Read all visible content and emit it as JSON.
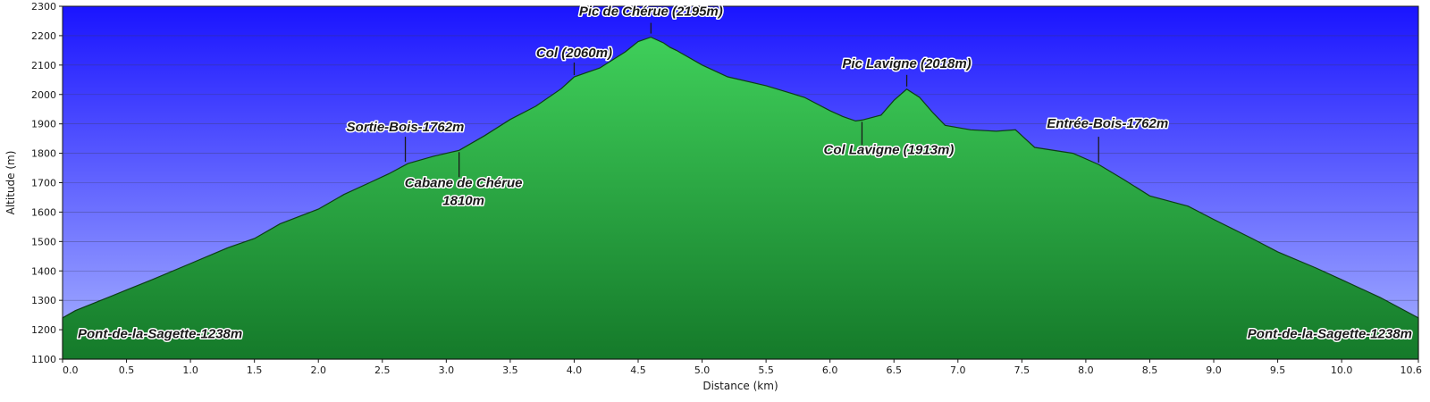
{
  "chart_data": {
    "type": "area",
    "title": "",
    "xlabel": "Distance   (km)",
    "ylabel": "Altitude (m)",
    "xlim": [
      0,
      10.6
    ],
    "ylim": [
      1100,
      2300
    ],
    "xticks": [
      "0.0",
      "0.5",
      "1.0",
      "1.5",
      "2.0",
      "2.5",
      "3.0",
      "3.5",
      "4.0",
      "4.5",
      "5.0",
      "5.5",
      "6.0",
      "6.5",
      "7.0",
      "7.5",
      "8.0",
      "8.5",
      "9.0",
      "9.5",
      "10.0",
      "10.6"
    ],
    "yticks": [
      "1100",
      "1200",
      "1300",
      "1400",
      "1500",
      "1600",
      "1700",
      "1800",
      "1900",
      "2000",
      "2100",
      "2200",
      "2300"
    ],
    "grid": true,
    "series": [
      {
        "x": [
          0.0,
          0.1,
          0.3,
          0.5,
          0.7,
          1.0,
          1.3,
          1.5,
          1.7,
          2.0,
          2.2,
          2.4,
          2.55,
          2.7,
          2.9,
          3.1,
          3.3,
          3.5,
          3.7,
          3.9,
          4.0,
          4.2,
          4.4,
          4.5,
          4.6,
          4.7,
          4.75,
          4.8,
          5.0,
          5.2,
          5.5,
          5.8,
          6.0,
          6.1,
          6.2,
          6.25,
          6.4,
          6.5,
          6.6,
          6.7,
          6.8,
          6.9,
          7.1,
          7.3,
          7.45,
          7.6,
          7.9,
          8.1,
          8.3,
          8.5,
          8.8,
          9.0,
          9.3,
          9.5,
          9.8,
          10.0,
          10.3,
          10.6
        ],
        "y": [
          1240,
          1265,
          1300,
          1335,
          1370,
          1425,
          1480,
          1510,
          1560,
          1610,
          1660,
          1700,
          1730,
          1765,
          1790,
          1810,
          1860,
          1915,
          1960,
          2020,
          2060,
          2090,
          2145,
          2180,
          2195,
          2175,
          2160,
          2150,
          2100,
          2060,
          2030,
          1990,
          1945,
          1925,
          1910,
          1913,
          1930,
          1980,
          2018,
          1990,
          1940,
          1895,
          1880,
          1875,
          1880,
          1820,
          1800,
          1762,
          1710,
          1655,
          1620,
          1575,
          1510,
          1465,
          1410,
          1370,
          1310,
          1240
        ]
      }
    ],
    "annotations": [
      {
        "text": "Pic de Chérue (2195m)",
        "x": 4.6,
        "y": 2195
      },
      {
        "text": "Col (2060m)",
        "x": 4.0,
        "y": 2060
      },
      {
        "text": "Pic Lavigne (2018m)",
        "x": 6.6,
        "y": 2018
      },
      {
        "text": "Col Lavigne (1913m)",
        "x": 6.25,
        "y": 1913
      },
      {
        "text": "Sortie-Bois-1762m",
        "x": 2.68,
        "y": 1762
      },
      {
        "text": "Cabane de Chérue",
        "text2": "1810m",
        "x": 3.1,
        "y": 1810
      },
      {
        "text": "Entrée-Bois-1762m",
        "x": 8.1,
        "y": 1762
      },
      {
        "text": "Pont-de-la-Sagette-1238m",
        "x": 0.0,
        "y": 1238
      },
      {
        "text": "Pont-de-la-Sagette-1238m",
        "x": 10.6,
        "y": 1238
      }
    ]
  },
  "colors": {
    "sky_top": "#1a14ff",
    "sky_bottom": "#a9b4ff",
    "terrain_light": "#3fcf5a",
    "terrain_dark": "#157a2a"
  }
}
